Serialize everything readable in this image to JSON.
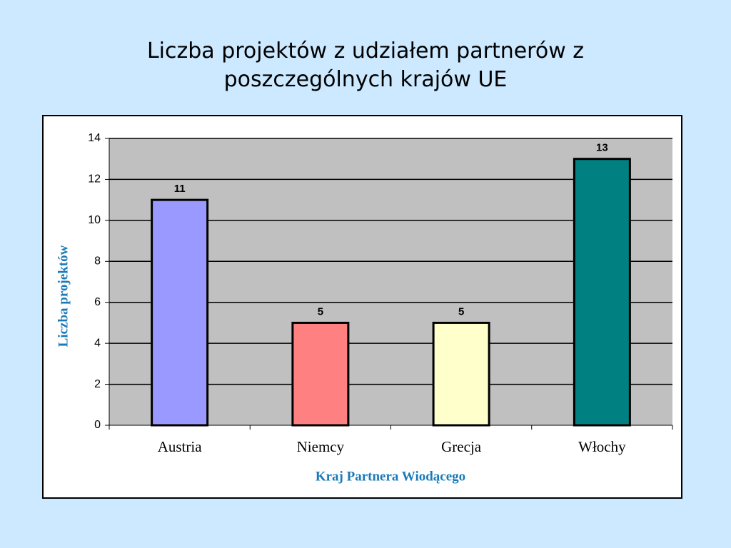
{
  "chart_data": {
    "type": "bar",
    "title": "Liczba projektów z udziałem partnerów z poszczególnych krajów UE",
    "x_label": "Kraj Partnera Wiodącego",
    "y_label": "Liczba projektów",
    "categories": [
      "Austria",
      "Niemcy",
      "Grecja",
      "Włochy"
    ],
    "values": [
      11,
      5,
      5,
      13
    ],
    "colors": [
      "#9999ff",
      "#ff8080",
      "#ffffcc",
      "#008080"
    ],
    "ylim": [
      0,
      14
    ],
    "yticks": [
      0,
      2,
      4,
      6,
      8,
      10,
      12,
      14
    ],
    "grid": true
  }
}
